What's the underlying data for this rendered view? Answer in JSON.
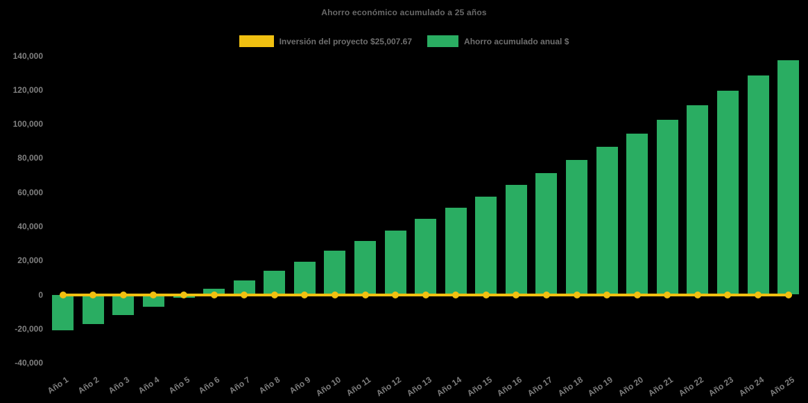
{
  "title": "Ahorro económico acumulado a 25 años",
  "legend": {
    "investment": {
      "label": "Inversión del proyecto $25,007.67"
    },
    "savings": {
      "label": "Ahorro acumulado anual $"
    }
  },
  "colors": {
    "background": "#000000",
    "investment_yellow": "#f0c011",
    "savings_green": "#2aad62",
    "title_text": "#696969",
    "legend_text": "#6f6f6f",
    "tick_text": "#808080"
  },
  "chart_data": {
    "type": "bar",
    "title": "Ahorro económico acumulado a 25 años",
    "categories": [
      "Año 1",
      "Año 2",
      "Año 3",
      "Año 4",
      "Año 5",
      "Año 6",
      "Año 7",
      "Año 8",
      "Año 9",
      "Año 10",
      "Año 11",
      "Año 12",
      "Año 13",
      "Año 14",
      "Año 15",
      "Año 16",
      "Año 17",
      "Año 18",
      "Año 19",
      "Año 20",
      "Año 21",
      "Año 22",
      "Año 23",
      "Año 24",
      "Año 25"
    ],
    "series": [
      {
        "name": "Ahorro acumulado anual $",
        "type": "bar",
        "color": "#2aad62",
        "values": [
          -21000,
          -17300,
          -12100,
          -7100,
          -1900,
          3400,
          8400,
          14100,
          19400,
          25800,
          31600,
          37700,
          44300,
          50800,
          57300,
          64400,
          71300,
          78800,
          86600,
          94500,
          102600,
          110800,
          119600,
          128400,
          137300
        ]
      },
      {
        "name": "Inversión del proyecto $25,007.67",
        "type": "line",
        "color": "#f0c011",
        "marker": "circle",
        "values": [
          0,
          0,
          0,
          0,
          0,
          0,
          0,
          0,
          0,
          0,
          0,
          0,
          0,
          0,
          0,
          0,
          0,
          0,
          0,
          0,
          0,
          0,
          0,
          0,
          0
        ]
      }
    ],
    "xlabel": "",
    "ylabel": "",
    "ylim": [
      -40000,
      140000
    ],
    "ytick_step": 20000,
    "yticks": [
      {
        "label": "140,000",
        "value": 140000
      },
      {
        "label": "120,000",
        "value": 120000
      },
      {
        "label": "100,000",
        "value": 100000
      },
      {
        "label": "80,000",
        "value": 80000
      },
      {
        "label": "60,000",
        "value": 60000
      },
      {
        "label": "40,000",
        "value": 40000
      },
      {
        "label": "20,000",
        "value": 20000
      },
      {
        "label": "0",
        "value": 0
      },
      {
        "label": "-20,000",
        "value": -20000
      },
      {
        "label": "-40,000",
        "value": -40000
      }
    ],
    "grid": false,
    "legend_position": "top",
    "x_label_rotation": -34
  }
}
